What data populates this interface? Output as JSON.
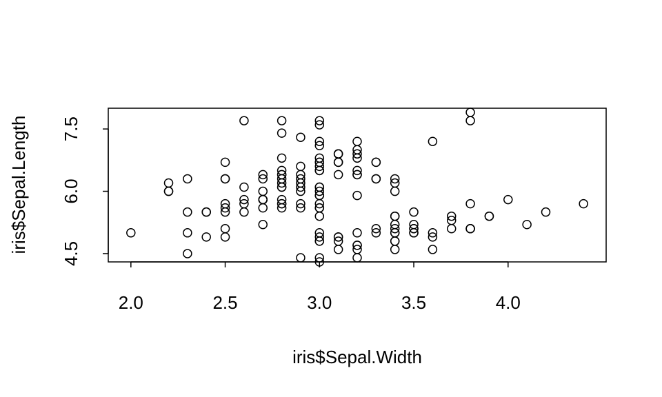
{
  "chart_data": {
    "type": "scatter",
    "title": "",
    "xlabel": "iris$Sepal.Width",
    "ylabel": "iris$Sepal.Length",
    "xlim": [
      1.88,
      4.52
    ],
    "ylim": [
      4.3,
      8.0
    ],
    "xticks": [
      2.0,
      2.5,
      3.0,
      3.5,
      4.0
    ],
    "xtick_labels": [
      "2.0",
      "2.5",
      "3.0",
      "3.5",
      "4.0"
    ],
    "yticks": [
      4.5,
      6.0,
      7.5
    ],
    "ytick_labels": [
      "4.5",
      "6.0",
      "7.5"
    ],
    "grid": false,
    "marker": "open-circle",
    "points": [
      [
        5.1,
        3.5
      ],
      [
        4.9,
        3.0
      ],
      [
        4.7,
        3.2
      ],
      [
        4.6,
        3.1
      ],
      [
        5.0,
        3.6
      ],
      [
        5.4,
        3.9
      ],
      [
        4.6,
        3.4
      ],
      [
        5.0,
        3.4
      ],
      [
        4.4,
        2.9
      ],
      [
        4.9,
        3.1
      ],
      [
        5.4,
        3.7
      ],
      [
        4.8,
        3.4
      ],
      [
        4.8,
        3.0
      ],
      [
        4.3,
        3.0
      ],
      [
        5.8,
        4.0
      ],
      [
        5.7,
        4.4
      ],
      [
        5.4,
        3.9
      ],
      [
        5.1,
        3.5
      ],
      [
        5.7,
        3.8
      ],
      [
        5.1,
        3.8
      ],
      [
        5.4,
        3.4
      ],
      [
        5.1,
        3.7
      ],
      [
        4.6,
        3.6
      ],
      [
        5.1,
        3.3
      ],
      [
        4.8,
        3.4
      ],
      [
        5.0,
        3.0
      ],
      [
        5.0,
        3.4
      ],
      [
        5.2,
        3.5
      ],
      [
        5.2,
        3.4
      ],
      [
        4.7,
        3.2
      ],
      [
        4.8,
        3.1
      ],
      [
        5.4,
        3.4
      ],
      [
        5.2,
        4.1
      ],
      [
        5.5,
        4.2
      ],
      [
        4.9,
        3.1
      ],
      [
        5.0,
        3.2
      ],
      [
        5.5,
        3.5
      ],
      [
        4.9,
        3.6
      ],
      [
        4.4,
        3.0
      ],
      [
        5.1,
        3.4
      ],
      [
        5.0,
        3.5
      ],
      [
        4.5,
        2.3
      ],
      [
        4.4,
        3.2
      ],
      [
        5.0,
        3.5
      ],
      [
        5.1,
        3.8
      ],
      [
        4.8,
        3.0
      ],
      [
        5.1,
        3.8
      ],
      [
        4.6,
        3.2
      ],
      [
        5.3,
        3.7
      ],
      [
        5.0,
        3.3
      ],
      [
        7.0,
        3.2
      ],
      [
        6.4,
        3.2
      ],
      [
        6.9,
        3.1
      ],
      [
        5.5,
        2.3
      ],
      [
        6.5,
        2.8
      ],
      [
        5.7,
        2.8
      ],
      [
        6.3,
        3.3
      ],
      [
        4.9,
        2.4
      ],
      [
        6.6,
        2.9
      ],
      [
        5.2,
        2.7
      ],
      [
        5.0,
        2.0
      ],
      [
        5.9,
        3.0
      ],
      [
        6.0,
        2.2
      ],
      [
        6.1,
        2.9
      ],
      [
        5.6,
        2.9
      ],
      [
        6.7,
        3.1
      ],
      [
        5.6,
        3.0
      ],
      [
        5.8,
        2.7
      ],
      [
        6.2,
        2.2
      ],
      [
        5.6,
        2.5
      ],
      [
        5.9,
        3.2
      ],
      [
        6.1,
        2.8
      ],
      [
        6.3,
        2.5
      ],
      [
        6.1,
        2.8
      ],
      [
        6.4,
        2.9
      ],
      [
        6.6,
        3.0
      ],
      [
        6.8,
        2.8
      ],
      [
        6.7,
        3.0
      ],
      [
        6.0,
        2.9
      ],
      [
        5.7,
        2.6
      ],
      [
        5.5,
        2.4
      ],
      [
        5.5,
        2.4
      ],
      [
        5.8,
        2.7
      ],
      [
        6.0,
        2.7
      ],
      [
        5.4,
        3.0
      ],
      [
        6.0,
        3.4
      ],
      [
        6.7,
        3.1
      ],
      [
        6.3,
        2.3
      ],
      [
        5.6,
        3.0
      ],
      [
        5.5,
        2.5
      ],
      [
        5.5,
        2.6
      ],
      [
        6.1,
        3.0
      ],
      [
        5.8,
        2.6
      ],
      [
        5.0,
        2.3
      ],
      [
        5.6,
        2.7
      ],
      [
        5.7,
        3.0
      ],
      [
        5.7,
        2.9
      ],
      [
        6.2,
        2.9
      ],
      [
        5.1,
        2.5
      ],
      [
        5.7,
        2.8
      ],
      [
        6.3,
        3.3
      ],
      [
        5.8,
        2.7
      ],
      [
        7.1,
        3.0
      ],
      [
        6.3,
        2.9
      ],
      [
        6.5,
        3.0
      ],
      [
        7.6,
        3.0
      ],
      [
        4.9,
        2.5
      ],
      [
        7.3,
        2.9
      ],
      [
        6.7,
        2.5
      ],
      [
        7.2,
        3.6
      ],
      [
        6.5,
        3.2
      ],
      [
        6.4,
        2.7
      ],
      [
        6.8,
        3.0
      ],
      [
        5.7,
        2.5
      ],
      [
        5.8,
        2.8
      ],
      [
        6.4,
        3.2
      ],
      [
        6.5,
        3.0
      ],
      [
        7.7,
        3.8
      ],
      [
        7.7,
        2.6
      ],
      [
        6.0,
        2.2
      ],
      [
        6.9,
        3.2
      ],
      [
        5.6,
        2.8
      ],
      [
        7.7,
        2.8
      ],
      [
        6.3,
        2.7
      ],
      [
        6.7,
        3.3
      ],
      [
        7.2,
        3.2
      ],
      [
        6.2,
        2.8
      ],
      [
        6.1,
        3.0
      ],
      [
        6.4,
        2.8
      ],
      [
        7.2,
        3.0
      ],
      [
        7.4,
        2.8
      ],
      [
        7.9,
        3.8
      ],
      [
        6.4,
        2.8
      ],
      [
        6.3,
        2.8
      ],
      [
        6.1,
        2.6
      ],
      [
        7.7,
        3.0
      ],
      [
        6.3,
        3.4
      ],
      [
        6.4,
        3.1
      ],
      [
        6.0,
        3.0
      ],
      [
        6.9,
        3.1
      ],
      [
        6.7,
        3.1
      ],
      [
        6.9,
        3.1
      ],
      [
        5.8,
        2.7
      ],
      [
        6.8,
        3.2
      ],
      [
        6.7,
        3.3
      ],
      [
        6.7,
        3.0
      ],
      [
        6.3,
        2.5
      ],
      [
        6.5,
        3.0
      ],
      [
        6.2,
        3.4
      ],
      [
        5.9,
        3.0
      ]
    ]
  }
}
